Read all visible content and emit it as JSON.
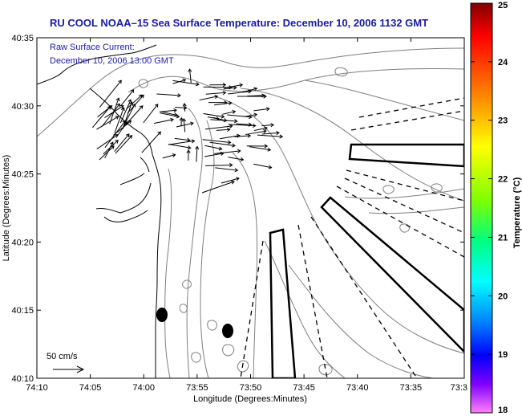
{
  "title": "RU COOL  NOAA–15  Sea Surface Temperature:  December 10, 2006 1132 GMT",
  "current_label_line1": "Raw Surface Current:",
  "current_label_line2": "December 10, 2006 13:00 GMT",
  "scale_label": "50 cm/s",
  "x_axis_label": "Longitude (Degrees:Minutes)",
  "y_axis_label": "Latitude (Degrees:Minutes)",
  "x_ticks": [
    "74:10",
    "74:05",
    "74:00",
    "73:55",
    "73:50",
    "73:45",
    "73:40",
    "73:35",
    "73:3"
  ],
  "y_ticks": [
    "40:35",
    "40:30",
    "40:25",
    "40:20",
    "40:15",
    "40:10"
  ],
  "colorbar": {
    "title": "Temperature (°C)",
    "ticks": [
      "25",
      "24",
      "23",
      "22",
      "21",
      "20",
      "19",
      "18"
    ],
    "min": 18,
    "max": 25
  },
  "colors": {
    "title": "#1a1aa6",
    "contour": "#7f7f7f",
    "coast": "#000000"
  }
}
